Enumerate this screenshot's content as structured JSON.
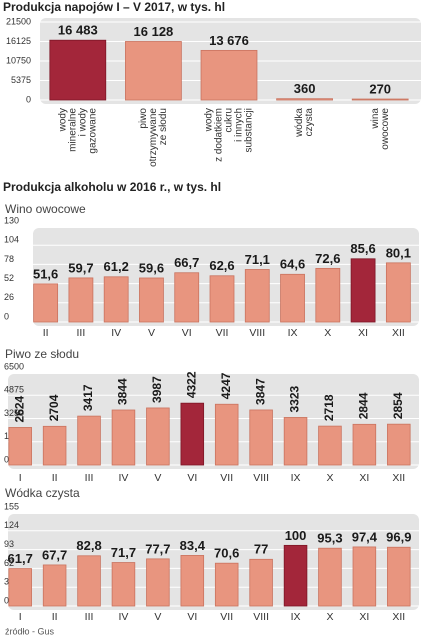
{
  "heading": "Produkcja alkoholu w 2016 r., w tys. hl",
  "source": "źródło - Gus",
  "chart_data": [
    {
      "type": "bar",
      "title": "Produkcja napojów I – V 2017, w tys. hl",
      "categories": [
        [
          "wody",
          "mineralne",
          "i wody",
          "gazowane"
        ],
        [
          "piwo",
          "otrzymywane",
          "ze słodu"
        ],
        [
          "wody",
          "z dodatkiem",
          "cukru",
          "i innych",
          "substancji"
        ],
        [
          "wódka",
          "czysta"
        ],
        [
          "wina",
          "owocowe"
        ]
      ],
      "values": [
        16483,
        16128,
        13676,
        360,
        270
      ],
      "value_labels": [
        "16 483",
        "16 128",
        "13 676",
        "360",
        "270"
      ],
      "color": "#e8957f",
      "highlight_color": "#a3263a",
      "highlight": 0,
      "ylim": [
        0,
        21500
      ],
      "yticks": [
        0,
        5375,
        10750,
        16125,
        21500
      ],
      "grid": true
    },
    {
      "type": "bar",
      "title": "Wino owocowe",
      "categories": [
        "II",
        "III",
        "IV",
        "V",
        "VI",
        "VII",
        "VIII",
        "IX",
        "X",
        "XI",
        "XII"
      ],
      "values": [
        51.6,
        59.7,
        61.2,
        59.6,
        66.7,
        62.6,
        71.1,
        64.6,
        72.6,
        85.6,
        80.1
      ],
      "value_labels": [
        "51,6",
        "59,7",
        "61,2",
        "59,6",
        "66,7",
        "62,6",
        "71,1",
        "64,6",
        "72,6",
        "85,6",
        "80,1"
      ],
      "color": "#e8957f",
      "highlight_color": "#a3263a",
      "highlight": 9,
      "ylim": [
        0,
        130
      ],
      "yticks": [
        0,
        26,
        52,
        78,
        104,
        130
      ],
      "grid": true
    },
    {
      "type": "bar",
      "title": "Piwo ze słodu",
      "categories": [
        "I",
        "II",
        "III",
        "IV",
        "V",
        "VI",
        "VII",
        "VIII",
        "IX",
        "X",
        "XI",
        "XII"
      ],
      "values": [
        2624,
        2704,
        3417,
        3844,
        3987,
        4322,
        4247,
        3847,
        3323,
        2718,
        2844,
        2854
      ],
      "color": "#e8957f",
      "highlight_color": "#a3263a",
      "highlight": 5,
      "ylim": [
        0,
        6500
      ],
      "yticks": [
        0,
        1625,
        3250,
        4875,
        6500
      ],
      "grid": true
    },
    {
      "type": "bar",
      "title": "Wódka czysta",
      "categories": [
        "I",
        "II",
        "III",
        "IV",
        "V",
        "VI",
        "VII",
        "VIII",
        "IX",
        "X",
        "XI",
        "XII"
      ],
      "values": [
        61.7,
        67.7,
        82.8,
        71.7,
        77.7,
        83.4,
        70.6,
        77,
        100,
        95.3,
        97.4,
        96.9
      ],
      "value_labels": [
        "61,7",
        "67,7",
        "82,8",
        "71,7",
        "77,7",
        "83,4",
        "70,6",
        "77",
        "100",
        "95,3",
        "97,4",
        "96,9"
      ],
      "color": "#e8957f",
      "highlight_color": "#a3263a",
      "highlight": 8,
      "ylim": [
        0,
        155
      ],
      "yticks": [
        0,
        31,
        62,
        93,
        124,
        155
      ],
      "grid": true
    }
  ]
}
